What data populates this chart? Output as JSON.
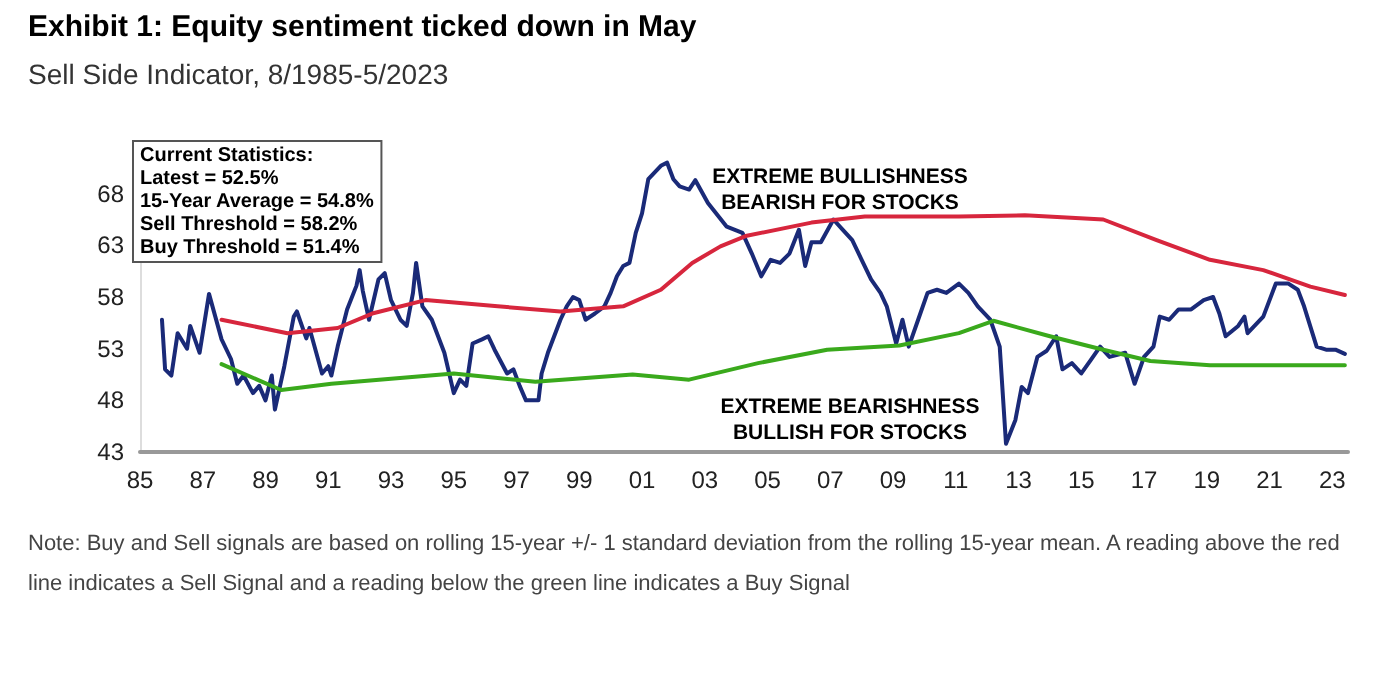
{
  "chart_data": {
    "type": "line",
    "title": "Exhibit 1: Equity sentiment ticked down in May",
    "subtitle": "Sell Side Indicator, 8/1985-5/2023",
    "xlim": [
      1985,
      2023.5
    ],
    "xticks": [
      {
        "value": 1985,
        "label": "85"
      },
      {
        "value": 1987,
        "label": "87"
      },
      {
        "value": 1989,
        "label": "89"
      },
      {
        "value": 1991,
        "label": "91"
      },
      {
        "value": 1993,
        "label": "93"
      },
      {
        "value": 1995,
        "label": "95"
      },
      {
        "value": 1997,
        "label": "97"
      },
      {
        "value": 1999,
        "label": "99"
      },
      {
        "value": 2001,
        "label": "01"
      },
      {
        "value": 2003,
        "label": "03"
      },
      {
        "value": 2005,
        "label": "05"
      },
      {
        "value": 2007,
        "label": "07"
      },
      {
        "value": 2009,
        "label": "09"
      },
      {
        "value": 2011,
        "label": "11"
      },
      {
        "value": 2013,
        "label": "13"
      },
      {
        "value": 2015,
        "label": "15"
      },
      {
        "value": 2017,
        "label": "17"
      },
      {
        "value": 2019,
        "label": "19"
      },
      {
        "value": 2021,
        "label": "21"
      },
      {
        "value": 2023,
        "label": "23"
      }
    ],
    "ylim": [
      43,
      73
    ],
    "yticks": [
      43,
      48,
      53,
      58,
      63,
      68
    ],
    "grid": false,
    "marker": "none",
    "line_style": "solid",
    "series": [
      {
        "color": "#1a2a78",
        "x": [
          1985.7,
          1985.8,
          1986.0,
          1986.2,
          1986.5,
          1986.6,
          1986.9,
          1987.2,
          1987.4,
          1987.6,
          1987.9,
          1988.1,
          1988.3,
          1988.6,
          1988.8,
          1989.0,
          1989.2,
          1989.3,
          1989.6,
          1989.9,
          1990.0,
          1990.3,
          1990.4,
          1990.8,
          1991.0,
          1991.1,
          1991.3,
          1991.6,
          1991.9,
          1992.0,
          1992.1,
          1992.3,
          1992.6,
          1992.8,
          1993.0,
          1993.3,
          1993.5,
          1993.7,
          1993.8,
          1994.0,
          1994.3,
          1994.7,
          1995.0,
          1995.2,
          1995.4,
          1995.6,
          1995.9,
          1996.1,
          1996.3,
          1996.7,
          1996.9,
          1997.1,
          1997.3,
          1997.7,
          1997.8,
          1998.0,
          1998.4,
          1998.6,
          1998.8,
          1999.0,
          1999.2,
          1999.5,
          1999.8,
          2000.0,
          2000.2,
          2000.4,
          2000.6,
          2000.8,
          2001.0,
          2001.2,
          2001.6,
          2001.8,
          2002.0,
          2002.2,
          2002.5,
          2002.7,
          2003.1,
          2003.7,
          2004.2,
          2004.5,
          2004.8,
          2005.1,
          2005.4,
          2005.7,
          2006.0,
          2006.2,
          2006.4,
          2006.7,
          2007.1,
          2007.4,
          2007.7,
          2008.0,
          2008.3,
          2008.6,
          2008.8,
          2009.1,
          2009.3,
          2009.5,
          2009.8,
          2010.1,
          2010.4,
          2010.7,
          2011.1,
          2011.4,
          2011.7,
          2012.1,
          2012.4,
          2012.6,
          2012.9,
          2013.1,
          2013.3,
          2013.6,
          2013.9,
          2014.2,
          2014.4,
          2014.7,
          2015.0,
          2015.3,
          2015.6,
          2015.9,
          2016.4,
          2016.7,
          2017.0,
          2017.3,
          2017.5,
          2017.8,
          2018.1,
          2018.5,
          2018.9,
          2019.2,
          2019.4,
          2019.6,
          2020.0,
          2020.2,
          2020.3,
          2020.8,
          2021.2,
          2021.6,
          2021.9,
          2022.1,
          2022.5,
          2022.8,
          2023.1,
          2023.4
        ],
        "values": [
          55.8,
          51.0,
          50.4,
          54.5,
          53.0,
          55.2,
          52.6,
          58.3,
          56.1,
          53.9,
          52.0,
          49.6,
          50.4,
          48.7,
          49.4,
          48.0,
          50.4,
          47.1,
          51.3,
          56.1,
          56.6,
          54.0,
          55.0,
          50.6,
          51.3,
          50.4,
          53.2,
          56.8,
          59.1,
          60.6,
          58.6,
          55.8,
          59.7,
          60.3,
          57.7,
          55.8,
          55.2,
          58.4,
          61.3,
          57.1,
          55.8,
          52.6,
          48.7,
          50.0,
          49.4,
          53.5,
          53.9,
          54.2,
          52.9,
          50.6,
          51.0,
          49.4,
          48.0,
          48.0,
          50.6,
          52.6,
          55.8,
          57.1,
          58.0,
          57.7,
          55.8,
          56.4,
          57.1,
          58.4,
          60.0,
          61.0,
          61.3,
          64.2,
          66.1,
          69.4,
          70.7,
          71.0,
          69.4,
          68.7,
          68.4,
          69.3,
          67.1,
          64.8,
          64.2,
          62.2,
          60.0,
          61.6,
          61.3,
          62.2,
          64.5,
          61.0,
          63.3,
          63.3,
          65.5,
          64.5,
          63.5,
          61.6,
          59.7,
          58.4,
          57.1,
          53.5,
          55.8,
          53.2,
          55.8,
          58.4,
          58.7,
          58.4,
          59.3,
          58.4,
          57.1,
          55.8,
          53.2,
          43.8,
          46.1,
          49.3,
          48.7,
          52.2,
          52.8,
          54.2,
          51.0,
          51.6,
          50.6,
          51.9,
          53.2,
          52.2,
          52.6,
          49.6,
          52.2,
          53.2,
          56.1,
          55.8,
          56.8,
          56.8,
          57.7,
          58.0,
          56.4,
          54.2,
          55.2,
          56.1,
          54.5,
          56.1,
          59.3,
          59.3,
          58.7,
          57.1,
          53.2,
          52.9,
          52.9,
          52.5
        ]
      },
      {
        "color": "#d7263d",
        "x": [
          1987.6,
          1989.7,
          1991.3,
          1992.4,
          1994.1,
          1996.4,
          1998.4,
          2000.4,
          2001.6,
          2002.6,
          2003.5,
          2004.3,
          2006.4,
          2008.1,
          2011.1,
          2013.2,
          2015.7,
          2017.4,
          2019.1,
          2020.8,
          2022.3,
          2023.4
        ],
        "values": [
          55.8,
          54.5,
          55.0,
          56.4,
          57.7,
          57.1,
          56.6,
          57.1,
          58.7,
          61.3,
          62.9,
          63.9,
          65.2,
          65.8,
          65.8,
          65.9,
          65.5,
          63.5,
          61.6,
          60.6,
          59.0,
          58.2
        ]
      },
      {
        "color": "#3aa91c",
        "x": [
          1987.6,
          1989.5,
          1991.1,
          1995.0,
          1997.6,
          2000.7,
          2002.5,
          2004.7,
          2006.9,
          2009.2,
          2011.1,
          2012.2,
          2014.0,
          2015.7,
          2017.2,
          2019.1,
          2022.3,
          2023.4
        ],
        "values": [
          51.5,
          49.0,
          49.6,
          50.6,
          49.8,
          50.5,
          50.0,
          51.6,
          52.9,
          53.3,
          54.5,
          55.7,
          54.2,
          52.9,
          51.8,
          51.4,
          51.4,
          51.4
        ]
      }
    ],
    "annotations": [
      "Current Statistics:\nLatest = 52.5%\n15-Year Average = 54.8%\nSell Threshold = 58.2%\nBuy Threshold = 51.4%",
      "EXTREME BULLISHNESS\nBEARISH FOR STOCKS",
      "EXTREME BEARISHNESS\nBULLISH FOR STOCKS",
      "Note: Buy and Sell signals are based on rolling 15-year +/- 1 standard deviation from the rolling 15-year mean. A reading above the red line indicates a Sell Signal and a reading below the green line indicates a Buy Signal"
    ]
  }
}
